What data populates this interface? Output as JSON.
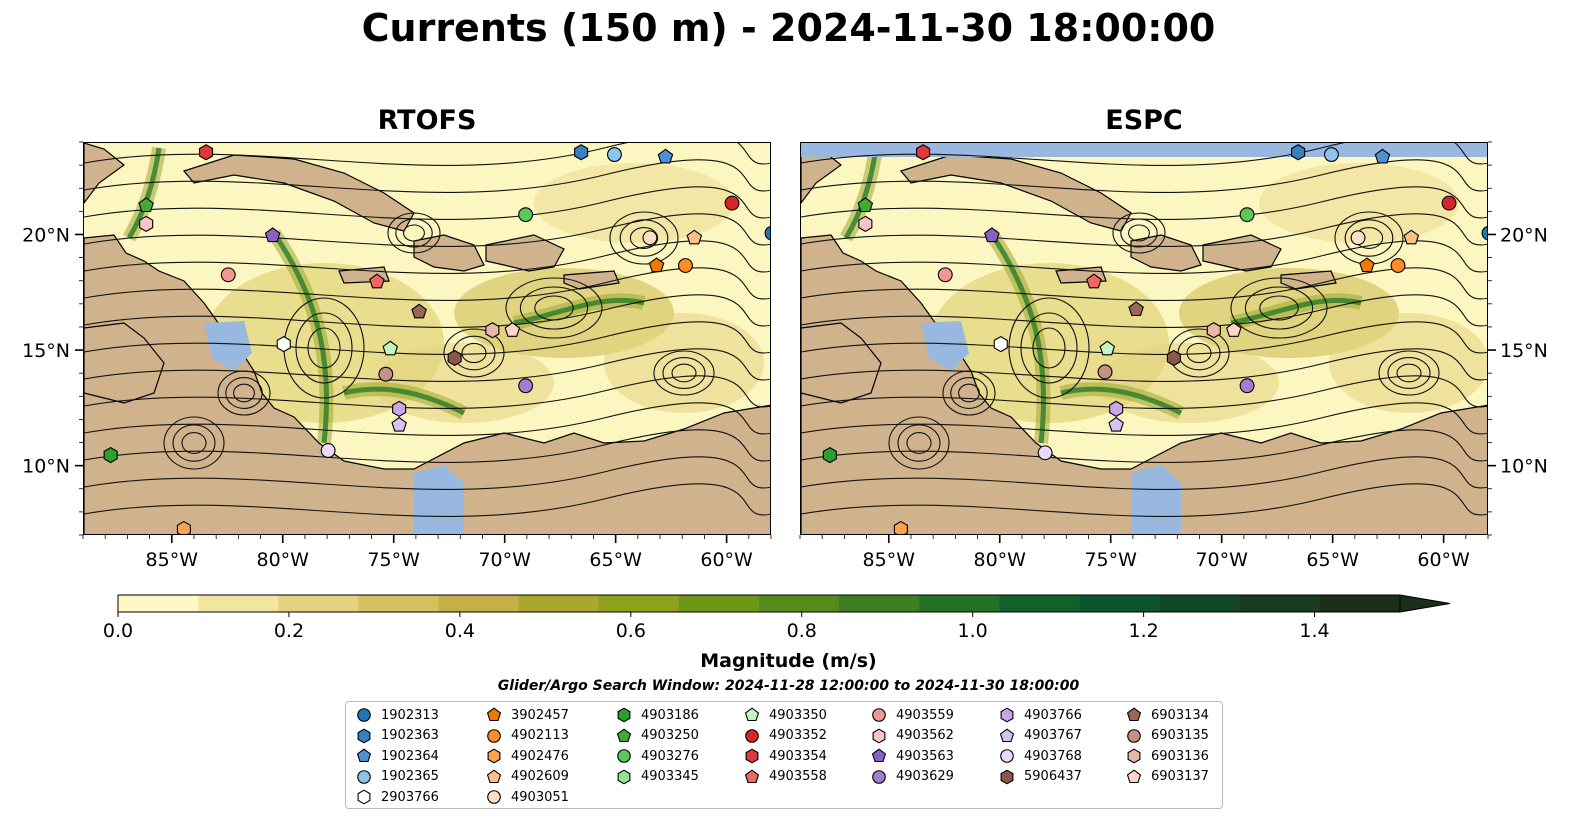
{
  "title": "Currents (150 m) - 2024-11-30 18:00:00",
  "panels": [
    {
      "name": "rtofs",
      "title": "RTOFS"
    },
    {
      "name": "espc",
      "title": "ESPC"
    }
  ],
  "map": {
    "lon_range": [
      -89,
      -58
    ],
    "lat_range": [
      7,
      24
    ],
    "x_ticks": [
      -85,
      -80,
      -75,
      -70,
      -65,
      -60
    ],
    "x_tick_labels": [
      "85°W",
      "80°W",
      "75°W",
      "70°W",
      "65°W",
      "60°W"
    ],
    "y_ticks": [
      10,
      15,
      20
    ],
    "y_tick_labels": [
      "10°N",
      "15°N",
      "20°N"
    ],
    "colors": {
      "ocean": "#98b8e0",
      "land": "#d0b38c",
      "low": "#fcf6c0",
      "mid": "#c8b84a",
      "high": "#2a7a28"
    }
  },
  "colorbar": {
    "label": "Magnitude (m/s)",
    "range": [
      0,
      1.5
    ],
    "extend": "max",
    "ticks": [
      0.0,
      0.2,
      0.4,
      0.6,
      0.8,
      1.0,
      1.2,
      1.4
    ],
    "tick_labels": [
      "0.0",
      "0.2",
      "0.4",
      "0.6",
      "0.8",
      "1.0",
      "1.2",
      "1.4"
    ],
    "colors": [
      "#fdf8c4",
      "#f2e6a0",
      "#e4d27e",
      "#d5c060",
      "#c6b046",
      "#aaa82c",
      "#8ea01c",
      "#709616",
      "#558a1c",
      "#3e7e20",
      "#237026",
      "#10622c",
      "#0c5430",
      "#124628",
      "#183a20",
      "#1b2e1a"
    ]
  },
  "search_window": "Glider/Argo Search Window: 2024-11-28 12:00:00 to 2024-11-30 18:00:00",
  "legend": [
    {
      "id": "1902313",
      "marker": "circle",
      "color": "#1f77b4"
    },
    {
      "id": "1902363",
      "marker": "hexagon",
      "color": "#3a7fbf"
    },
    {
      "id": "1902364",
      "marker": "pentagon",
      "color": "#4d8fd0"
    },
    {
      "id": "1902365",
      "marker": "circle",
      "color": "#8cc4ec"
    },
    {
      "id": "2903766",
      "marker": "hexagon",
      "color": "#ffffff"
    },
    {
      "id": "3902457",
      "marker": "pentagon",
      "color": "#f07808"
    },
    {
      "id": "4902113",
      "marker": "circle",
      "color": "#fd8c28"
    },
    {
      "id": "4902476",
      "marker": "hexagon",
      "color": "#fca352"
    },
    {
      "id": "4902609",
      "marker": "pentagon",
      "color": "#fdc085"
    },
    {
      "id": "4903051",
      "marker": "circle",
      "color": "#fde0c4"
    },
    {
      "id": "4903186",
      "marker": "hexagon",
      "color": "#2ca02c"
    },
    {
      "id": "4903250",
      "marker": "pentagon",
      "color": "#41ab3a"
    },
    {
      "id": "4903276",
      "marker": "circle",
      "color": "#5cc85c"
    },
    {
      "id": "4903345",
      "marker": "hexagon",
      "color": "#98e095"
    },
    {
      "id": "4903350",
      "marker": "pentagon",
      "color": "#c4f4c0"
    },
    {
      "id": "4903352",
      "marker": "circle",
      "color": "#d62728"
    },
    {
      "id": "4903354",
      "marker": "hexagon",
      "color": "#e0393b"
    },
    {
      "id": "4903558",
      "marker": "pentagon",
      "color": "#f06666"
    },
    {
      "id": "4903559",
      "marker": "circle",
      "color": "#f39595"
    },
    {
      "id": "4903562",
      "marker": "hexagon",
      "color": "#f8c4c4"
    },
    {
      "id": "4903563",
      "marker": "pentagon",
      "color": "#8b60c4"
    },
    {
      "id": "4903629",
      "marker": "circle",
      "color": "#a57dd0"
    },
    {
      "id": "4903766",
      "marker": "hexagon",
      "color": "#c5a8e8"
    },
    {
      "id": "4903767",
      "marker": "pentagon",
      "color": "#d8c0f2"
    },
    {
      "id": "4903768",
      "marker": "circle",
      "color": "#ecd8fc"
    },
    {
      "id": "5906437",
      "marker": "hexagon",
      "color": "#8c564b"
    },
    {
      "id": "6903134",
      "marker": "pentagon",
      "color": "#9a6658"
    },
    {
      "id": "6903135",
      "marker": "circle",
      "color": "#c49186"
    },
    {
      "id": "6903136",
      "marker": "hexagon",
      "color": "#e8b8a8"
    },
    {
      "id": "6903137",
      "marker": "pentagon",
      "color": "#fcd6c8"
    }
  ],
  "floats": {
    "rtofs": [
      {
        "id": "4903563",
        "lon": -80.5,
        "lat": 20.0
      },
      {
        "id": "4902609",
        "lon": -61.5,
        "lat": 19.9
      },
      {
        "id": "1902313",
        "lon": -58.0,
        "lat": 20.1
      },
      {
        "id": "4903352",
        "lon": -59.8,
        "lat": 21.4
      },
      {
        "id": "4903276",
        "lon": -69.1,
        "lat": 20.9
      },
      {
        "id": "4903051",
        "lon": -63.5,
        "lat": 19.9
      },
      {
        "id": "3902457",
        "lon": -63.2,
        "lat": 18.7
      },
      {
        "id": "4902113",
        "lon": -61.9,
        "lat": 18.7
      },
      {
        "id": "1902363",
        "lon": -66.6,
        "lat": 23.6
      },
      {
        "id": "1902365",
        "lon": -65.1,
        "lat": 23.5
      },
      {
        "id": "1902364",
        "lon": -62.8,
        "lat": 23.4
      },
      {
        "id": "4903354",
        "lon": -83.5,
        "lat": 23.6
      },
      {
        "id": "4903250",
        "lon": -86.2,
        "lat": 21.3
      },
      {
        "id": "4903562",
        "lon": -86.2,
        "lat": 20.5
      },
      {
        "id": "4903559",
        "lon": -82.5,
        "lat": 18.3
      },
      {
        "id": "4903558",
        "lon": -75.8,
        "lat": 18.0
      },
      {
        "id": "6903134",
        "lon": -73.9,
        "lat": 16.7
      },
      {
        "id": "2903766",
        "lon": -80.0,
        "lat": 15.3
      },
      {
        "id": "4903350",
        "lon": -75.2,
        "lat": 15.1
      },
      {
        "id": "5906437",
        "lon": -72.3,
        "lat": 14.7
      },
      {
        "id": "6903135",
        "lon": -75.4,
        "lat": 14.0
      },
      {
        "id": "6903136",
        "lon": -70.6,
        "lat": 15.9
      },
      {
        "id": "6903137",
        "lon": -69.7,
        "lat": 15.9
      },
      {
        "id": "4903629",
        "lon": -69.1,
        "lat": 13.5
      },
      {
        "id": "4903766",
        "lon": -74.8,
        "lat": 12.5
      },
      {
        "id": "4903767",
        "lon": -74.8,
        "lat": 11.8
      },
      {
        "id": "4903768",
        "lon": -78.0,
        "lat": 10.7
      },
      {
        "id": "4903186",
        "lon": -87.8,
        "lat": 10.5
      },
      {
        "id": "4902476",
        "lon": -84.5,
        "lat": 7.3
      }
    ],
    "espc": [
      {
        "id": "4903563",
        "lon": -80.4,
        "lat": 20.0
      },
      {
        "id": "4902609",
        "lon": -61.5,
        "lat": 19.9
      },
      {
        "id": "1902313",
        "lon": -58.0,
        "lat": 20.1
      },
      {
        "id": "4903352",
        "lon": -59.8,
        "lat": 21.4
      },
      {
        "id": "4903276",
        "lon": -68.9,
        "lat": 20.9
      },
      {
        "id": "4903051",
        "lon": -63.9,
        "lat": 19.9
      },
      {
        "id": "3902457",
        "lon": -63.5,
        "lat": 18.7
      },
      {
        "id": "4902113",
        "lon": -62.1,
        "lat": 18.7
      },
      {
        "id": "1902363",
        "lon": -66.6,
        "lat": 23.6
      },
      {
        "id": "1902365",
        "lon": -65.1,
        "lat": 23.5
      },
      {
        "id": "1902364",
        "lon": -62.8,
        "lat": 23.4
      },
      {
        "id": "4903354",
        "lon": -83.5,
        "lat": 23.6
      },
      {
        "id": "4903250",
        "lon": -86.1,
        "lat": 21.3
      },
      {
        "id": "4903562",
        "lon": -86.1,
        "lat": 20.5
      },
      {
        "id": "4903559",
        "lon": -82.5,
        "lat": 18.3
      },
      {
        "id": "4903558",
        "lon": -75.8,
        "lat": 18.0
      },
      {
        "id": "6903134",
        "lon": -73.9,
        "lat": 16.8
      },
      {
        "id": "2903766",
        "lon": -80.0,
        "lat": 15.3
      },
      {
        "id": "4903350",
        "lon": -75.2,
        "lat": 15.1
      },
      {
        "id": "5906437",
        "lon": -72.2,
        "lat": 14.7
      },
      {
        "id": "6903135",
        "lon": -75.3,
        "lat": 14.1
      },
      {
        "id": "6903136",
        "lon": -70.4,
        "lat": 15.9
      },
      {
        "id": "6903137",
        "lon": -69.5,
        "lat": 15.9
      },
      {
        "id": "4903629",
        "lon": -68.9,
        "lat": 13.5
      },
      {
        "id": "4903766",
        "lon": -74.8,
        "lat": 12.5
      },
      {
        "id": "4903767",
        "lon": -74.8,
        "lat": 11.8
      },
      {
        "id": "4903768",
        "lon": -78.0,
        "lat": 10.6
      },
      {
        "id": "4903186",
        "lon": -87.7,
        "lat": 10.5
      },
      {
        "id": "4902476",
        "lon": -84.5,
        "lat": 7.3
      }
    ]
  }
}
